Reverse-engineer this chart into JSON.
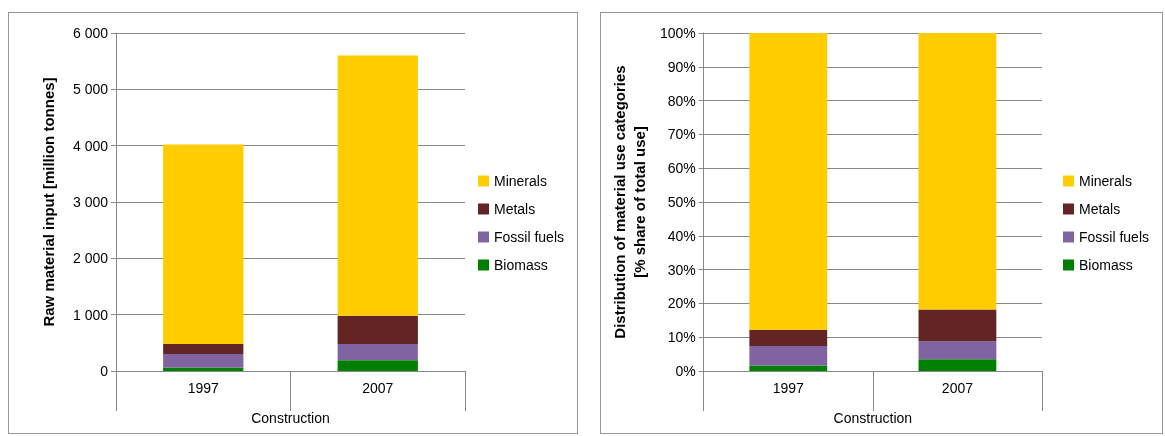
{
  "chart_data": [
    {
      "type": "bar",
      "stacked": true,
      "ylabel": "Raw material input [million tonnes]",
      "xlabel": "Construction",
      "categories": [
        "1997",
        "2007"
      ],
      "series": [
        {
          "name": "Biomass",
          "color": "#008000",
          "values": [
            60,
            190
          ]
        },
        {
          "name": "Fossil fuels",
          "color": "#8064a2",
          "values": [
            240,
            290
          ]
        },
        {
          "name": "Metals",
          "color": "#632523",
          "values": [
            180,
            500
          ]
        },
        {
          "name": "Minerals",
          "color": "#ffcc00",
          "values": [
            3540,
            4620
          ]
        }
      ],
      "ylim": [
        0,
        6000
      ],
      "yticks": [
        0,
        {
          "value": 1000,
          "label": "1 000"
        },
        {
          "value": 2000,
          "label": "2 000"
        },
        {
          "value": 3000,
          "label": "3 000"
        },
        {
          "value": 4000,
          "label": "4 000"
        },
        {
          "value": 5000,
          "label": "5 000"
        },
        {
          "value": 6000,
          "label": "6 000"
        }
      ],
      "grid": "y",
      "legend": "right"
    },
    {
      "type": "bar",
      "stacked": true,
      "ylabel": "Distribution of material use categories\n[% share of total use]",
      "xlabel": "Construction",
      "categories": [
        "1997",
        "2007"
      ],
      "series": [
        {
          "name": "Biomass",
          "color": "#008000",
          "values": [
            1.6,
            3.5
          ]
        },
        {
          "name": "Fossil fuels",
          "color": "#8064a2",
          "values": [
            5.8,
            5.3
          ]
        },
        {
          "name": "Metals",
          "color": "#632523",
          "values": [
            4.8,
            9.4
          ]
        },
        {
          "name": "Minerals",
          "color": "#ffcc00",
          "values": [
            87.8,
            81.8
          ]
        }
      ],
      "ylim": [
        0,
        100
      ],
      "yticks": [
        {
          "value": 0,
          "label": "0%"
        },
        {
          "value": 10,
          "label": "10%"
        },
        {
          "value": 20,
          "label": "20%"
        },
        {
          "value": 30,
          "label": "30%"
        },
        {
          "value": 40,
          "label": "40%"
        },
        {
          "value": 50,
          "label": "50%"
        },
        {
          "value": 60,
          "label": "60%"
        },
        {
          "value": 70,
          "label": "70%"
        },
        {
          "value": 80,
          "label": "80%"
        },
        {
          "value": 90,
          "label": "90%"
        },
        {
          "value": 100,
          "label": "100%"
        }
      ],
      "grid": "y",
      "legend": "right"
    }
  ]
}
